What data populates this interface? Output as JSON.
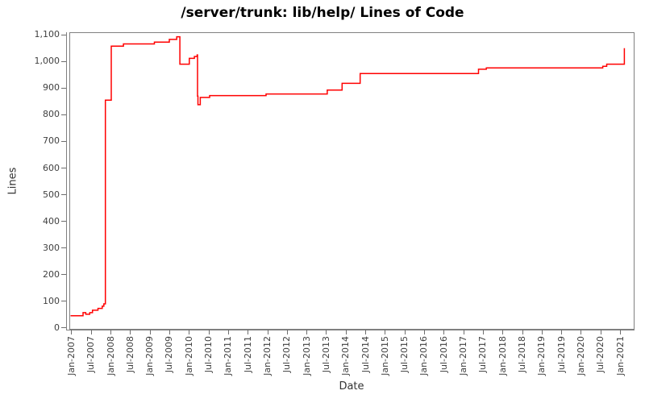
{
  "title": "/server/trunk: lib/help/ Lines of Code",
  "chart_data": {
    "type": "line",
    "title": "/server/trunk: lib/help/ Lines of Code",
    "xlabel": "Date",
    "ylabel": "Lines",
    "line_color": "#ff0000",
    "frame_color": "#808080",
    "grid": "off",
    "legend": "none",
    "step_interpolation": "step-after",
    "xlim": [
      2006.94,
      2021.36
    ],
    "ylim": [
      0,
      1100
    ],
    "y_ticks": [
      0,
      100,
      200,
      300,
      400,
      500,
      600,
      700,
      800,
      900,
      1000,
      1100
    ],
    "y_tick_labels": [
      "0",
      "100",
      "200",
      "300",
      "400",
      "500",
      "600",
      "700",
      "800",
      "900",
      "1,000",
      "1,100"
    ],
    "x_tick_labels": [
      "Jan-2007",
      "Jul-2007",
      "Jan-2008",
      "Jul-2008",
      "Jan-2009",
      "Jul-2009",
      "Jan-2010",
      "Jul-2010",
      "Jan-2011",
      "Jul-2011",
      "Jan-2012",
      "Jul-2012",
      "Jan-2013",
      "Jul-2013",
      "Jan-2014",
      "Jul-2014",
      "Jan-2015",
      "Jul-2015",
      "Jan-2016",
      "Jul-2016",
      "Jan-2017",
      "Jul-2017",
      "Jan-2018",
      "Jul-2018",
      "Jan-2019",
      "Jul-2019",
      "Jan-2020",
      "Jul-2020",
      "Jan-2021"
    ],
    "x_tick_start_year": 2007,
    "x_tick_step_years": 0.5,
    "series": [
      {
        "name": "lines-of-code",
        "points": [
          [
            2006.97,
            45
          ],
          [
            2007.29,
            57
          ],
          [
            2007.36,
            51
          ],
          [
            2007.46,
            57
          ],
          [
            2007.53,
            66
          ],
          [
            2007.67,
            73
          ],
          [
            2007.78,
            81
          ],
          [
            2007.82,
            90
          ],
          [
            2007.86,
            855
          ],
          [
            2008.01,
            1058
          ],
          [
            2008.32,
            1066
          ],
          [
            2009.11,
            1073
          ],
          [
            2009.49,
            1083
          ],
          [
            2009.68,
            1093
          ],
          [
            2009.76,
            990
          ],
          [
            2010.0,
            1012
          ],
          [
            2010.13,
            1019
          ],
          [
            2010.2,
            1025
          ],
          [
            2010.21,
            870
          ],
          [
            2010.22,
            838
          ],
          [
            2010.28,
            865
          ],
          [
            2010.52,
            872
          ],
          [
            2011.96,
            878
          ],
          [
            2013.52,
            893
          ],
          [
            2013.9,
            918
          ],
          [
            2014.36,
            955
          ],
          [
            2017.38,
            971
          ],
          [
            2017.58,
            976
          ],
          [
            2020.55,
            982
          ],
          [
            2020.65,
            990
          ],
          [
            2021.1,
            1050
          ]
        ]
      }
    ]
  }
}
